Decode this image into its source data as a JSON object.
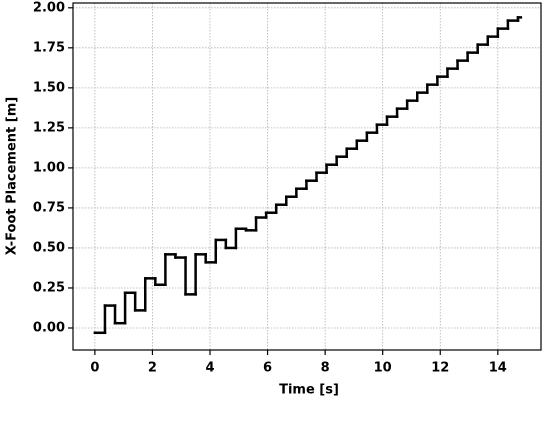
{
  "chart_data": {
    "type": "step",
    "xlabel": "Time [s]",
    "ylabel": "X-Foot Placement [m]",
    "x": [
      0,
      0.35,
      0.7,
      1.05,
      1.4,
      1.75,
      2.1,
      2.45,
      2.8,
      3.15,
      3.5,
      3.85,
      4.2,
      4.55,
      4.9,
      5.25,
      5.6,
      5.95,
      6.3,
      6.65,
      7.0,
      7.35,
      7.7,
      8.05,
      8.4,
      8.75,
      9.1,
      9.45,
      9.8,
      10.15,
      10.5,
      10.85,
      11.2,
      11.55,
      11.9,
      12.25,
      12.6,
      12.95,
      13.3,
      13.65,
      14.0,
      14.35,
      14.7,
      14.8
    ],
    "values": [
      -0.03,
      0.14,
      0.03,
      0.22,
      0.11,
      0.31,
      0.27,
      0.46,
      0.44,
      0.21,
      0.46,
      0.41,
      0.55,
      0.5,
      0.62,
      0.61,
      0.69,
      0.72,
      0.77,
      0.82,
      0.87,
      0.92,
      0.97,
      1.02,
      1.07,
      1.12,
      1.17,
      1.22,
      1.27,
      1.32,
      1.37,
      1.42,
      1.47,
      1.52,
      1.57,
      1.62,
      1.67,
      1.72,
      1.77,
      1.82,
      1.87,
      1.92,
      1.94,
      1.94
    ],
    "color": "#000000",
    "xlim": [
      -0.76,
      15.5
    ],
    "ylim": [
      -0.1375,
      2.03
    ],
    "xticks": [
      0,
      2,
      4,
      6,
      8,
      10,
      12,
      14
    ],
    "yticks": [
      {
        "value": 0,
        "label": "0.00"
      },
      {
        "value": 0.25,
        "label": "0.25"
      },
      {
        "value": 0.5,
        "label": "0.50"
      },
      {
        "value": 0.75,
        "label": "0.75"
      },
      {
        "value": 1,
        "label": "1.00"
      },
      {
        "value": 1.25,
        "label": "1.25"
      },
      {
        "value": 1.5,
        "label": "1.50"
      },
      {
        "value": 1.75,
        "label": "1.75"
      },
      {
        "value": 2,
        "label": "2.00"
      }
    ],
    "grid": true
  }
}
